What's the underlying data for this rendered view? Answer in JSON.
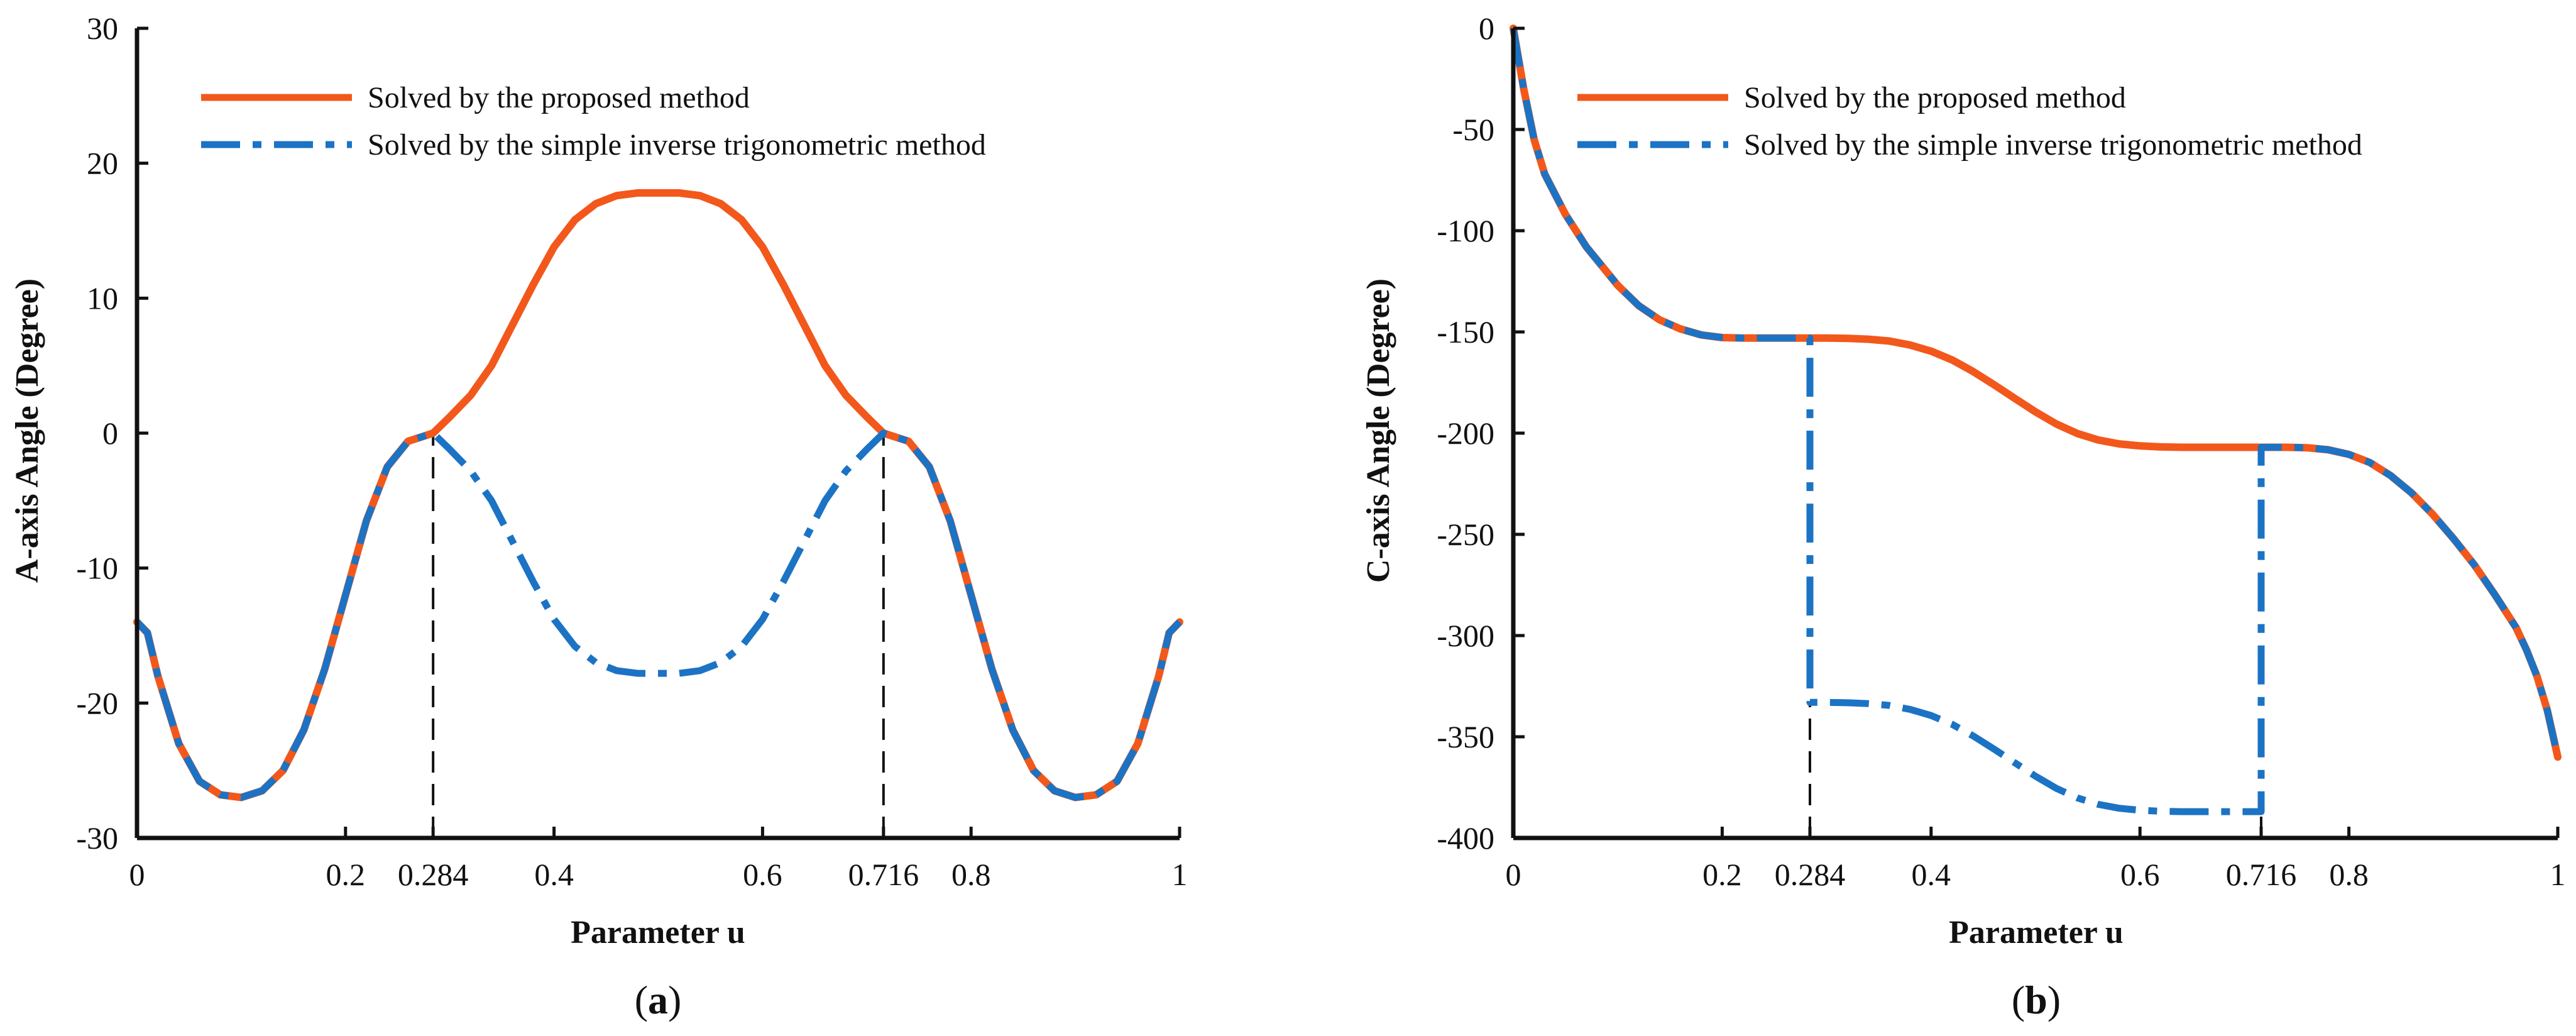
{
  "colors": {
    "proposed": "#F2581B",
    "simple": "#1C73C4",
    "axis": "#111111",
    "guide": "#111111"
  },
  "chart_data": [
    {
      "panel": "a",
      "panel_label": "a",
      "type": "line",
      "xlabel": "Parameter u",
      "ylabel": "A-axis Angle (Degree)",
      "xlim": [
        0,
        1
      ],
      "ylim": [
        -30,
        30
      ],
      "xticks": [
        0,
        0.2,
        0.284,
        0.4,
        0.6,
        0.716,
        0.8,
        1
      ],
      "xtick_labels": [
        "0",
        "0.2",
        "0.284",
        "0.4",
        "0.6",
        "0.716",
        "0.8",
        "1"
      ],
      "yticks": [
        -30,
        -20,
        -10,
        0,
        10,
        20,
        30
      ],
      "ytick_labels": [
        "-30",
        "-20",
        "-10",
        "0",
        "10",
        "20",
        "30"
      ],
      "guide_lines": [
        {
          "x": 0.284,
          "y_from": -30,
          "y_to": 0
        },
        {
          "x": 0.716,
          "y_from": -30,
          "y_to": 0
        }
      ],
      "legend": [
        "Solved by the proposed method",
        "Solved by the simple inverse trigonometric method"
      ],
      "series": [
        {
          "name": "Solved by the proposed method",
          "style": "solid",
          "x": [
            0,
            0.01,
            0.02,
            0.04,
            0.06,
            0.08,
            0.1,
            0.12,
            0.14,
            0.16,
            0.18,
            0.2,
            0.22,
            0.24,
            0.26,
            0.284,
            0.3,
            0.32,
            0.34,
            0.36,
            0.38,
            0.4,
            0.42,
            0.44,
            0.46,
            0.48,
            0.5,
            0.52,
            0.54,
            0.56,
            0.58,
            0.6,
            0.62,
            0.64,
            0.66,
            0.68,
            0.7,
            0.716,
            0.74,
            0.76,
            0.78,
            0.8,
            0.82,
            0.84,
            0.86,
            0.88,
            0.9,
            0.92,
            0.94,
            0.96,
            0.98,
            0.99,
            1
          ],
          "y": [
            -14,
            -14.8,
            -18,
            -23,
            -25.8,
            -26.8,
            -27,
            -26.5,
            -25,
            -22,
            -17.5,
            -12,
            -6.5,
            -2.5,
            -0.6,
            0,
            1.2,
            2.8,
            5.0,
            8.0,
            11.0,
            13.8,
            15.8,
            17.0,
            17.6,
            17.8,
            17.8,
            17.8,
            17.6,
            17.0,
            15.8,
            13.8,
            11.0,
            8.0,
            5.0,
            2.8,
            1.2,
            0,
            -0.6,
            -2.5,
            -6.5,
            -12,
            -17.5,
            -22,
            -25,
            -26.5,
            -27,
            -26.8,
            -25.8,
            -23,
            -18,
            -14.8,
            -14
          ]
        },
        {
          "name": "Solved by the simple inverse trigonometric method",
          "style": "dashdot",
          "x": [
            0,
            0.01,
            0.02,
            0.04,
            0.06,
            0.08,
            0.1,
            0.12,
            0.14,
            0.16,
            0.18,
            0.2,
            0.22,
            0.24,
            0.26,
            0.284,
            0.3,
            0.32,
            0.34,
            0.36,
            0.38,
            0.4,
            0.42,
            0.44,
            0.46,
            0.48,
            0.5,
            0.52,
            0.54,
            0.56,
            0.58,
            0.6,
            0.62,
            0.64,
            0.66,
            0.68,
            0.7,
            0.716,
            0.74,
            0.76,
            0.78,
            0.8,
            0.82,
            0.84,
            0.86,
            0.88,
            0.9,
            0.92,
            0.94,
            0.96,
            0.98,
            0.99,
            1
          ],
          "y": [
            -14,
            -14.8,
            -18,
            -23,
            -25.8,
            -26.8,
            -27,
            -26.5,
            -25,
            -22,
            -17.5,
            -12,
            -6.5,
            -2.5,
            -0.6,
            0,
            -1.2,
            -2.8,
            -5.0,
            -8.0,
            -11.0,
            -13.8,
            -15.8,
            -17.0,
            -17.6,
            -17.8,
            -17.8,
            -17.8,
            -17.6,
            -17.0,
            -15.8,
            -13.8,
            -11.0,
            -8.0,
            -5.0,
            -2.8,
            -1.2,
            0,
            -0.6,
            -2.5,
            -6.5,
            -12,
            -17.5,
            -22,
            -25,
            -26.5,
            -27,
            -26.8,
            -25.8,
            -23,
            -18,
            -14.8,
            -14
          ]
        }
      ]
    },
    {
      "panel": "b",
      "panel_label": "b",
      "type": "line",
      "xlabel": "Parameter u",
      "ylabel": "C-axis Angle (Degree)",
      "xlim": [
        0,
        1
      ],
      "ylim": [
        -400,
        0
      ],
      "xticks": [
        0,
        0.2,
        0.284,
        0.4,
        0.6,
        0.716,
        0.8,
        1
      ],
      "xtick_labels": [
        "0",
        "0.2",
        "0.284",
        "0.4",
        "0.6",
        "0.716",
        "0.8",
        "1"
      ],
      "yticks": [
        -400,
        -350,
        -300,
        -250,
        -200,
        -150,
        -100,
        -50,
        0
      ],
      "ytick_labels": [
        "-400",
        "-350",
        "-300",
        "-250",
        "-200",
        "-150",
        "-100",
        "-50",
        "0"
      ],
      "guide_lines": [
        {
          "x": 0.284,
          "y_from": -400,
          "y_to": -333
        },
        {
          "x": 0.716,
          "y_from": -400,
          "y_to": -387
        }
      ],
      "legend": [
        "Solved by the proposed method",
        "Solved by the simple inverse trigonometric method"
      ],
      "series": [
        {
          "name": "Solved by the proposed method",
          "style": "solid",
          "x": [
            0,
            0.005,
            0.01,
            0.02,
            0.03,
            0.05,
            0.07,
            0.1,
            0.12,
            0.14,
            0.16,
            0.18,
            0.2,
            0.22,
            0.25,
            0.284,
            0.3,
            0.32,
            0.34,
            0.36,
            0.38,
            0.4,
            0.42,
            0.44,
            0.46,
            0.48,
            0.5,
            0.52,
            0.54,
            0.56,
            0.58,
            0.6,
            0.62,
            0.64,
            0.66,
            0.68,
            0.7,
            0.716,
            0.74,
            0.76,
            0.78,
            0.8,
            0.82,
            0.84,
            0.86,
            0.88,
            0.9,
            0.92,
            0.94,
            0.96,
            0.97,
            0.98,
            0.99,
            1
          ],
          "y": [
            0,
            -15,
            -30,
            -55,
            -72,
            -92,
            -108,
            -127,
            -137,
            -144,
            -148.5,
            -151.5,
            -152.8,
            -153,
            -153,
            -153,
            -153,
            -153.2,
            -153.6,
            -154.5,
            -156.5,
            -159.5,
            -163.8,
            -169.5,
            -176,
            -182.8,
            -189.5,
            -195.5,
            -200.2,
            -203.4,
            -205.3,
            -206.3,
            -206.8,
            -207,
            -207,
            -207,
            -207,
            -207,
            -207,
            -207.2,
            -208.2,
            -210.5,
            -214.5,
            -221,
            -229.5,
            -240,
            -252,
            -265,
            -280,
            -296,
            -307,
            -320,
            -337,
            -360
          ]
        },
        {
          "name": "Solved by the simple inverse trigonometric method",
          "style": "dashdot",
          "x": [
            0,
            0.005,
            0.01,
            0.02,
            0.03,
            0.05,
            0.07,
            0.1,
            0.12,
            0.14,
            0.16,
            0.18,
            0.2,
            0.22,
            0.25,
            0.284,
            0.284,
            0.3,
            0.32,
            0.34,
            0.36,
            0.38,
            0.4,
            0.42,
            0.44,
            0.46,
            0.48,
            0.5,
            0.52,
            0.54,
            0.56,
            0.58,
            0.6,
            0.62,
            0.64,
            0.66,
            0.68,
            0.7,
            0.716,
            0.716,
            0.74,
            0.76,
            0.78,
            0.8,
            0.82,
            0.84,
            0.86,
            0.88,
            0.9,
            0.92,
            0.94,
            0.96,
            0.97,
            0.98,
            0.99,
            1
          ],
          "y": [
            0,
            -15,
            -30,
            -55,
            -72,
            -92,
            -108,
            -127,
            -137,
            -144,
            -148.5,
            -151.5,
            -152.8,
            -153,
            -153,
            -153,
            -333,
            -333,
            -333.2,
            -333.6,
            -334.5,
            -336.5,
            -339.5,
            -343.8,
            -349.5,
            -356,
            -362.8,
            -369.5,
            -375.5,
            -380.2,
            -383.4,
            -385.3,
            -386.3,
            -386.8,
            -387,
            -387,
            -387,
            -387,
            -387,
            -207,
            -207,
            -207.2,
            -208.2,
            -210.5,
            -214.5,
            -221,
            -229.5,
            -240,
            -252,
            -265,
            -280,
            -296,
            -307,
            -320,
            -337,
            -360
          ]
        }
      ]
    }
  ]
}
